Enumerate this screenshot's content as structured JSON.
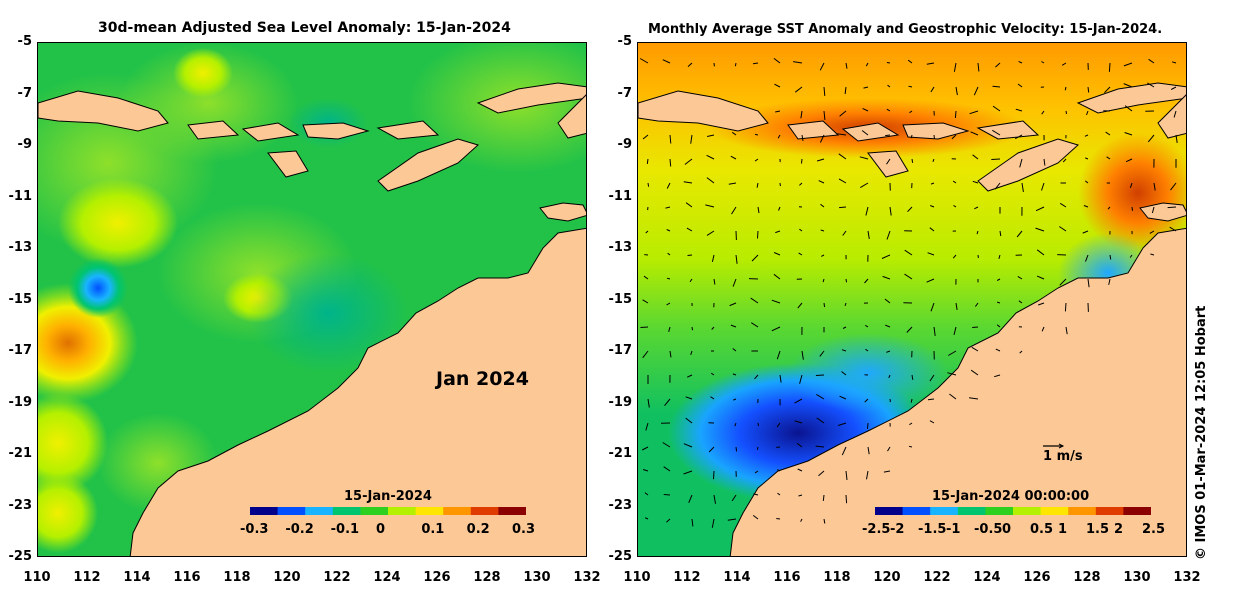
{
  "left_panel": {
    "title": "30d-mean Adjusted Sea Level Anomaly: 15-Jan-2024",
    "month_label": "Jan 2024",
    "colorbar": {
      "title": "15-Jan-2024",
      "labels": [
        "-0.3",
        "-0.2",
        "-0.1",
        "0",
        "0.1",
        "0.2",
        "0.3"
      ],
      "colors": [
        "#00008b",
        "#0050ff",
        "#19b4ff",
        "#00c46e",
        "#2ed020",
        "#b4f000",
        "#ffe600",
        "#ff9600",
        "#e03c00",
        "#8b0000"
      ]
    }
  },
  "right_panel": {
    "title": "Monthly Average SST Anomaly  and Geostrophic Velocity: 15-Jan-2024.",
    "velocity_scale_label": "1 m/s",
    "colorbar": {
      "title": "15-Jan-2024 00:00:00",
      "labels": [
        "-2.5",
        "-2",
        "-1.5",
        "-1",
        "-0.5",
        "0",
        "0.5",
        "1",
        "1.5",
        "2",
        "2.5"
      ],
      "colors": [
        "#00008b",
        "#0050ff",
        "#19b4ff",
        "#00c46e",
        "#2ed020",
        "#b4f000",
        "#ffe600",
        "#ff9600",
        "#e03c00",
        "#8b0000"
      ]
    }
  },
  "axes": {
    "y_ticks": [
      "-5",
      "-7",
      "-9",
      "-11",
      "-13",
      "-15",
      "-17",
      "-19",
      "-21",
      "-23",
      "-25"
    ],
    "x_ticks_left": [
      "110",
      "112",
      "114",
      "116",
      "118",
      "120",
      "122",
      "124",
      "126",
      "128",
      "130",
      "132"
    ],
    "x_ticks_right": [
      "110",
      "112",
      "114",
      "116",
      "118",
      "120",
      "122",
      "124",
      "126",
      "128",
      "130",
      "132"
    ]
  },
  "credit": "© IMOS 01-Mar-2024 12:05 Hobart",
  "colors": {
    "land": "#fcc896",
    "ocean_ssla": "#22c248",
    "ocean_sst": "#9be23a"
  }
}
